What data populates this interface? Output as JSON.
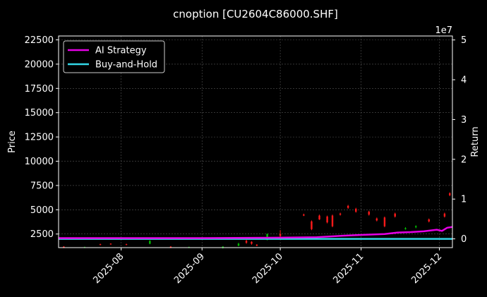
{
  "chart_data": {
    "type": "line",
    "title": "cnoption [CU2604C86000.SHF]",
    "ylabel_left": "Price",
    "ylabel_right": "Return",
    "right_axis_offset_label": "1e7",
    "x_ticks": [
      "2025-08",
      "2025-09",
      "2025-10",
      "2025-11",
      "2025-12"
    ],
    "x_range": [
      "2025-07-08",
      "2025-12-06"
    ],
    "y_left_ticks": [
      2500,
      5000,
      7500,
      10000,
      12500,
      15000,
      17500,
      20000,
      22500
    ],
    "y_left_range": [
      1100,
      22900
    ],
    "y_right_ticks": [
      0,
      1,
      2,
      3,
      4,
      5
    ],
    "y_right_range": [
      -0.22,
      5.1
    ],
    "grid": true,
    "legend_position": "top-left",
    "series": [
      {
        "name": "AI Strategy",
        "axis": "right",
        "color": "#e600e6",
        "points": [
          [
            "2025-07-08",
            0.02
          ],
          [
            "2025-08-01",
            0.02
          ],
          [
            "2025-09-01",
            0.02
          ],
          [
            "2025-10-01",
            0.03
          ],
          [
            "2025-10-15",
            0.04
          ],
          [
            "2025-10-25",
            0.08
          ],
          [
            "2025-11-01",
            0.1
          ],
          [
            "2025-11-10",
            0.12
          ],
          [
            "2025-11-15",
            0.16
          ],
          [
            "2025-11-20",
            0.17
          ],
          [
            "2025-11-25",
            0.19
          ],
          [
            "2025-11-30",
            0.23
          ],
          [
            "2025-12-02",
            0.2
          ],
          [
            "2025-12-04",
            0.28
          ],
          [
            "2025-12-06",
            0.3
          ]
        ]
      },
      {
        "name": "Buy-and-Hold",
        "axis": "right",
        "color": "#33d6e6",
        "points": [
          [
            "2025-07-08",
            0.0
          ],
          [
            "2025-12-06",
            0.0
          ]
        ]
      }
    ],
    "candles": [
      {
        "date": "2025-07-10",
        "open": 1200,
        "close": 1100,
        "high": 1250,
        "low": 1050
      },
      {
        "date": "2025-07-18",
        "open": 1100,
        "close": 1150,
        "high": 1200,
        "low": 1050
      },
      {
        "date": "2025-07-24",
        "open": 1450,
        "close": 1400,
        "high": 1500,
        "low": 1350
      },
      {
        "date": "2025-07-28",
        "open": 1500,
        "close": 1450,
        "high": 1550,
        "low": 1400
      },
      {
        "date": "2025-08-03",
        "open": 1450,
        "close": 1400,
        "high": 1500,
        "low": 1350
      },
      {
        "date": "2025-08-12",
        "open": 1500,
        "close": 1800,
        "high": 1850,
        "low": 1450
      },
      {
        "date": "2025-08-20",
        "open": 1200,
        "close": 1100,
        "high": 1250,
        "low": 1050
      },
      {
        "date": "2025-08-27",
        "open": 1100,
        "close": 1150,
        "high": 1200,
        "low": 1050
      },
      {
        "date": "2025-09-09",
        "open": 1100,
        "close": 1200,
        "high": 1250,
        "low": 1000
      },
      {
        "date": "2025-09-15",
        "open": 1300,
        "close": 1500,
        "high": 1600,
        "low": 1250
      },
      {
        "date": "2025-09-18",
        "open": 1800,
        "close": 1600,
        "high": 1900,
        "low": 1500
      },
      {
        "date": "2025-09-20",
        "open": 1700,
        "close": 1500,
        "high": 1750,
        "low": 1400
      },
      {
        "date": "2025-09-22",
        "open": 1400,
        "close": 1300,
        "high": 1450,
        "low": 1250
      },
      {
        "date": "2025-09-26",
        "open": 1900,
        "close": 2500,
        "high": 2550,
        "low": 1850
      },
      {
        "date": "2025-10-01",
        "open": 2500,
        "close": 2300,
        "high": 2900,
        "low": 2200
      },
      {
        "date": "2025-10-10",
        "open": 4500,
        "close": 4400,
        "high": 4600,
        "low": 4350
      },
      {
        "date": "2025-10-13",
        "open": 3800,
        "close": 3000,
        "high": 3900,
        "low": 2900
      },
      {
        "date": "2025-10-16",
        "open": 4400,
        "close": 4000,
        "high": 4500,
        "low": 3950
      },
      {
        "date": "2025-10-19",
        "open": 4300,
        "close": 3700,
        "high": 4400,
        "low": 3600
      },
      {
        "date": "2025-10-21",
        "open": 4400,
        "close": 3300,
        "high": 4500,
        "low": 3200
      },
      {
        "date": "2025-10-24",
        "open": 4600,
        "close": 4500,
        "high": 4700,
        "low": 4400
      },
      {
        "date": "2025-10-27",
        "open": 5400,
        "close": 5200,
        "high": 5500,
        "low": 5100
      },
      {
        "date": "2025-10-30",
        "open": 5100,
        "close": 4800,
        "high": 5200,
        "low": 4700
      },
      {
        "date": "2025-11-04",
        "open": 4800,
        "close": 4500,
        "high": 4900,
        "low": 4400
      },
      {
        "date": "2025-11-07",
        "open": 4100,
        "close": 3900,
        "high": 4200,
        "low": 3800
      },
      {
        "date": "2025-11-10",
        "open": 4200,
        "close": 3300,
        "high": 4300,
        "low": 3200
      },
      {
        "date": "2025-11-14",
        "open": 4600,
        "close": 4300,
        "high": 4700,
        "low": 4200
      },
      {
        "date": "2025-11-18",
        "open": 3000,
        "close": 3100,
        "high": 3200,
        "low": 2950
      },
      {
        "date": "2025-11-22",
        "open": 3200,
        "close": 3300,
        "high": 3400,
        "low": 3100
      },
      {
        "date": "2025-11-27",
        "open": 4000,
        "close": 3800,
        "high": 4100,
        "low": 3700
      },
      {
        "date": "2025-12-03",
        "open": 4600,
        "close": 4300,
        "high": 4700,
        "low": 4200
      },
      {
        "date": "2025-12-05",
        "open": 6700,
        "close": 6500,
        "high": 6800,
        "low": 6400
      }
    ],
    "colors": {
      "background": "#000000",
      "axis": "#ffffff",
      "grid": "#555555",
      "up": "#00c000",
      "down": "#ff1a1a"
    }
  }
}
